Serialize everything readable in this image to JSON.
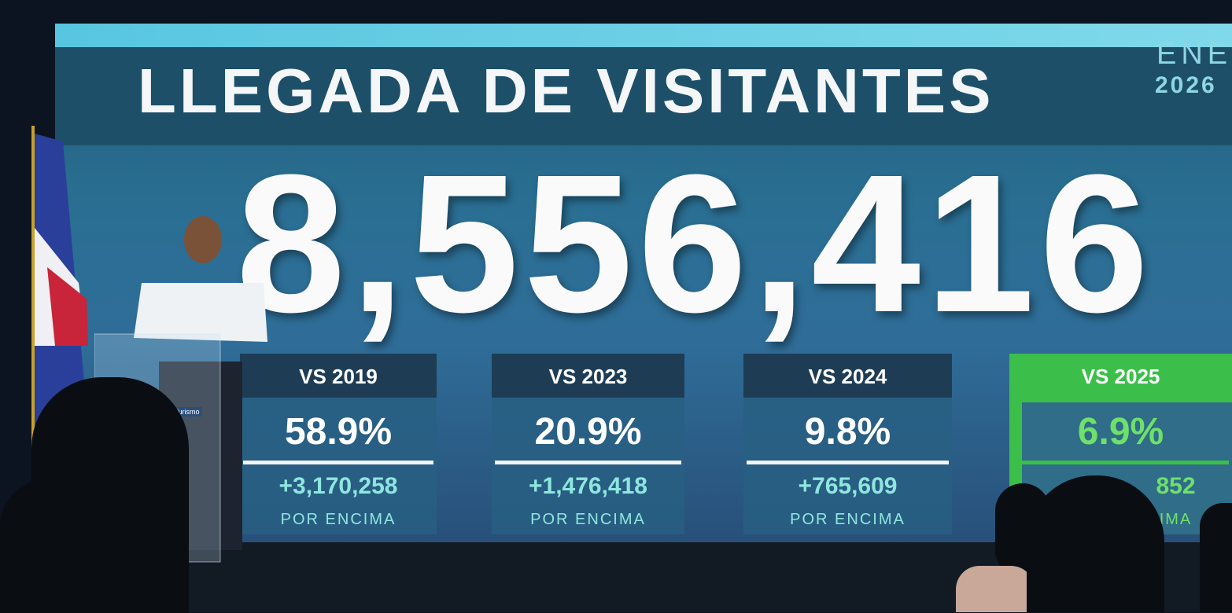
{
  "header": {
    "title": "LLEGADA DE VISITANTES",
    "period": "ENE",
    "year": "2026"
  },
  "total": "8,556,416",
  "cards": [
    {
      "label": "VS 2019",
      "percent": "58.9%",
      "difference": "+3,170,258",
      "note": "POR ENCIMA"
    },
    {
      "label": "VS 2023",
      "percent": "20.9%",
      "difference": "+1,476,418",
      "note": "POR ENCIMA"
    },
    {
      "label": "VS 2024",
      "percent": "9.8%",
      "difference": "+765,609",
      "note": "POR ENCIMA"
    },
    {
      "label": "VS 2025",
      "percent": "6.9%",
      "difference": "852",
      "note": "IMA"
    }
  ],
  "podium_label": "Ministerio de Turismo"
}
